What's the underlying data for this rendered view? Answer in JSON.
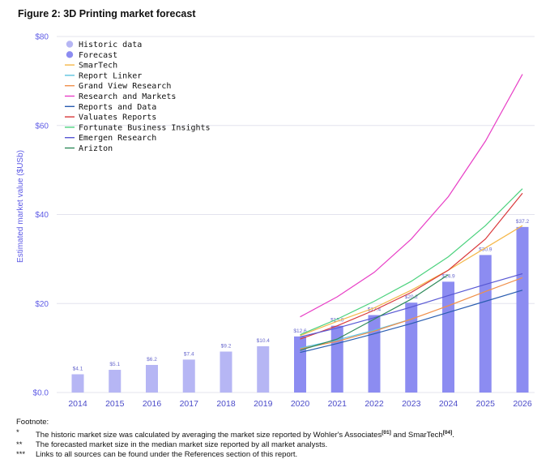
{
  "figure_title": "Figure 2: 3D Printing market forecast",
  "colors": {
    "historic": "#b6b6f4",
    "forecast": "#8c8cf1",
    "axis_text": "#5f5ce6",
    "grid": "#e3e3ee"
  },
  "chart_data": {
    "type": "bar",
    "title": "Figure 2: 3D Printing market forecast",
    "ylabel": "Estimated market value ($USb)",
    "xlabel": "",
    "ylim": [
      0,
      80
    ],
    "yticks": [
      0,
      20,
      40,
      60,
      80
    ],
    "ytick_labels": [
      "$0.0",
      "$20",
      "$40",
      "$60",
      "$80"
    ],
    "grid": true,
    "legend_position": "top-left",
    "categories": [
      "2014",
      "2015",
      "2016",
      "2017",
      "2018",
      "2019",
      "2020",
      "2021",
      "2022",
      "2023",
      "2024",
      "2025",
      "2026"
    ],
    "bars": [
      {
        "year": "2014",
        "value": 4.1,
        "label": "$4.1",
        "kind": "historic"
      },
      {
        "year": "2015",
        "value": 5.1,
        "label": "$5.1",
        "kind": "historic"
      },
      {
        "year": "2016",
        "value": 6.2,
        "label": "$6.2",
        "kind": "historic"
      },
      {
        "year": "2017",
        "value": 7.4,
        "label": "$7.4",
        "kind": "historic"
      },
      {
        "year": "2018",
        "value": 9.2,
        "label": "$9.2",
        "kind": "historic"
      },
      {
        "year": "2019",
        "value": 10.4,
        "label": "$10.4",
        "kind": "historic"
      },
      {
        "year": "2020",
        "value": 12.6,
        "label": "$12.6",
        "kind": "forecast"
      },
      {
        "year": "2021",
        "value": 15.0,
        "label": "$15.0",
        "kind": "forecast"
      },
      {
        "year": "2022",
        "value": 17.4,
        "label": "$17.4",
        "kind": "forecast"
      },
      {
        "year": "2023",
        "value": 20.2,
        "label": "$20.2",
        "kind": "forecast"
      },
      {
        "year": "2024",
        "value": 24.9,
        "label": "$24.9",
        "kind": "forecast"
      },
      {
        "year": "2025",
        "value": 30.9,
        "label": "$30.9",
        "kind": "forecast"
      },
      {
        "year": "2026",
        "value": 37.2,
        "label": "$37.2",
        "kind": "forecast"
      }
    ],
    "legend_bars": [
      {
        "name": "Historic data",
        "color": "#b6b6f4"
      },
      {
        "name": "Forecast",
        "color": "#8c8cf1"
      }
    ],
    "series": [
      {
        "name": "SmarTech",
        "color": "#f5b84a",
        "x": [
          "2020",
          "2021",
          "2022",
          "2023",
          "2024",
          "2025",
          "2026"
        ],
        "values": [
          12.8,
          16.0,
          19.0,
          23.0,
          27.5,
          32.5,
          37.5
        ]
      },
      {
        "name": "Report Linker",
        "color": "#5bc3e0",
        "x": [
          "2020",
          "2021",
          "2022",
          "2023"
        ],
        "values": [
          10.0,
          11.8,
          14.0,
          16.5
        ]
      },
      {
        "name": "Grand View Research",
        "color": "#f0904c",
        "x": [
          "2020",
          "2021",
          "2022",
          "2023",
          "2024",
          "2025",
          "2026"
        ],
        "values": [
          9.8,
          11.5,
          13.8,
          16.5,
          19.5,
          22.7,
          25.8
        ]
      },
      {
        "name": "Research and Markets",
        "color": "#e83fc6",
        "x": [
          "2020",
          "2021",
          "2022",
          "2023",
          "2024",
          "2025",
          "2026"
        ],
        "values": [
          17.0,
          21.5,
          27.0,
          34.5,
          44.0,
          56.5,
          71.5
        ]
      },
      {
        "name": "Reports and Data",
        "color": "#2a5db0",
        "x": [
          "2020",
          "2021",
          "2022",
          "2023",
          "2024",
          "2025",
          "2026"
        ],
        "values": [
          9.0,
          11.0,
          13.2,
          15.5,
          18.0,
          20.5,
          23.0
        ]
      },
      {
        "name": "Valuates Reports",
        "color": "#d9383a",
        "x": [
          "2020",
          "2021",
          "2022",
          "2023",
          "2024",
          "2025",
          "2026"
        ],
        "values": [
          12.0,
          15.0,
          18.5,
          22.5,
          27.5,
          34.5,
          44.8
        ]
      },
      {
        "name": "Fortunate Business Insights",
        "color": "#4cd27e",
        "x": [
          "2020",
          "2021",
          "2022",
          "2023",
          "2024",
          "2025",
          "2026"
        ],
        "values": [
          13.0,
          16.5,
          20.5,
          25.0,
          30.5,
          37.5,
          45.8
        ]
      },
      {
        "name": "Emergen Research",
        "color": "#5858d4",
        "x": [
          "2020",
          "2021",
          "2022",
          "2023",
          "2024",
          "2025",
          "2026"
        ],
        "values": [
          12.5,
          14.5,
          16.8,
          19.2,
          21.8,
          24.3,
          26.7
        ]
      },
      {
        "name": "Arizton",
        "color": "#2e8a5a",
        "x": [
          "2020",
          "2021",
          "2022",
          "2023",
          "2024"
        ],
        "values": [
          9.5,
          12.0,
          16.5,
          21.0,
          26.5
        ]
      }
    ]
  },
  "footnotes": {
    "heading": "Footnote:",
    "items": [
      {
        "mark": "*",
        "text_before": "The historic market size was calculated by averaging the market size reported by Wohler's Associates",
        "sup1": "[01]",
        "text_mid": " and SmarTech",
        "sup2": "[04]",
        "text_after": "."
      },
      {
        "mark": "**",
        "text": "The forecasted market size in the median market size reported by all market analysts."
      },
      {
        "mark": "***",
        "text": "Links to all sources can be found under the References section of this report."
      }
    ]
  }
}
